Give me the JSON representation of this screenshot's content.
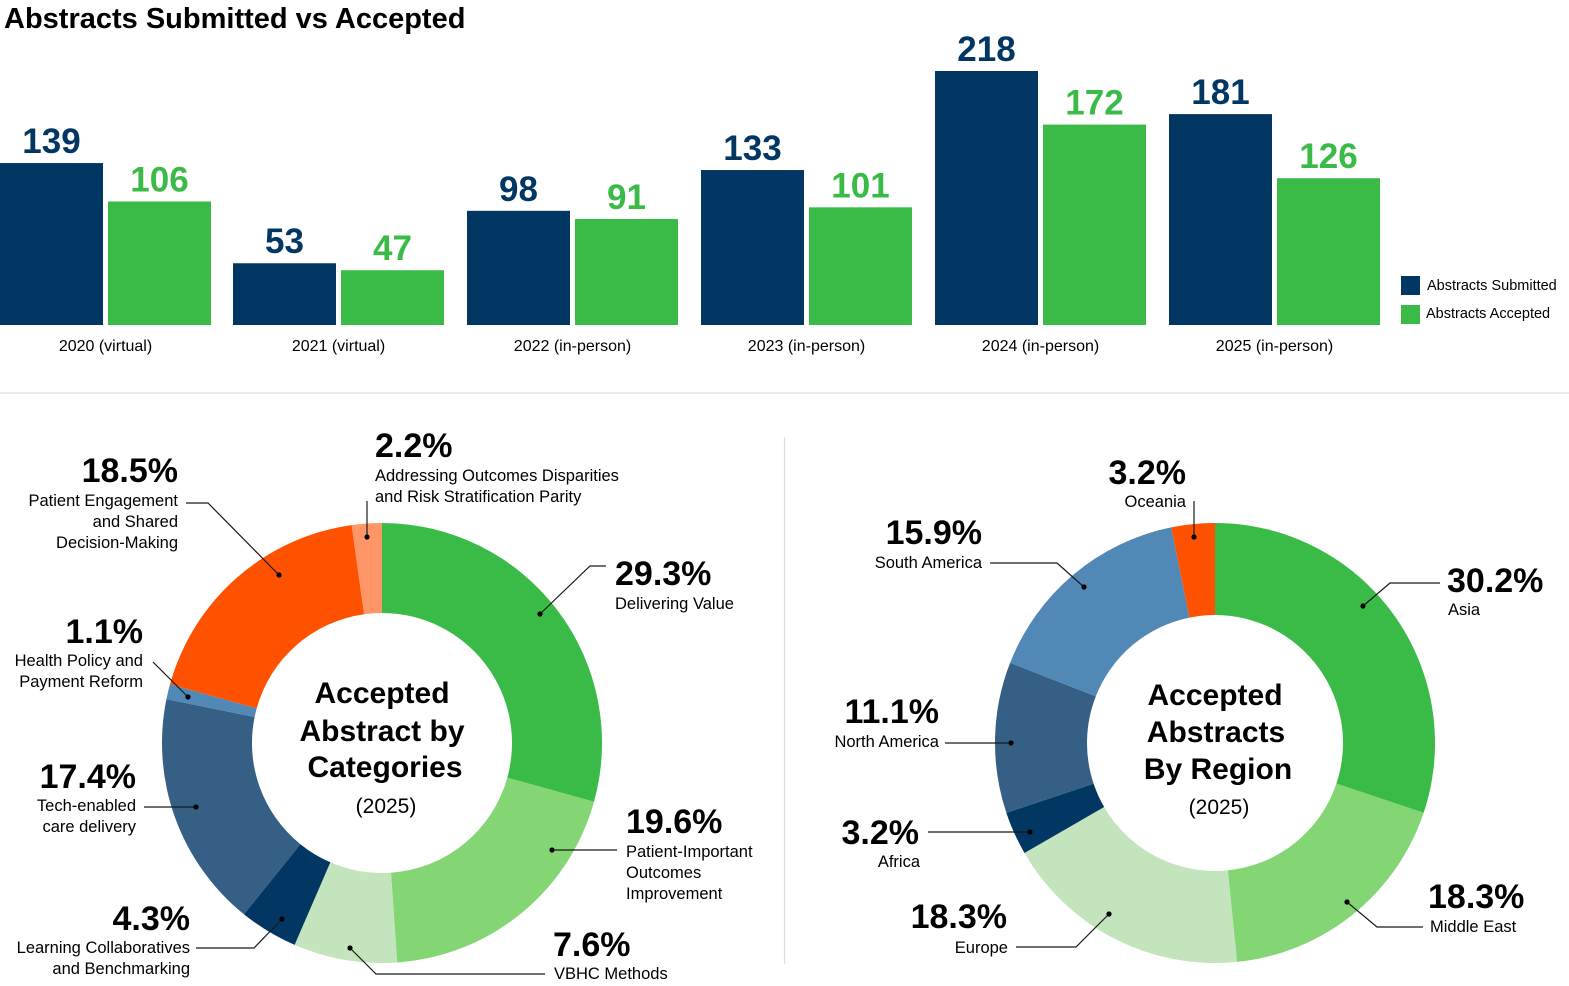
{
  "chart_data": [
    {
      "type": "bar",
      "title": "Abstracts Submitted vs Accepted",
      "xlabel": "",
      "ylabel": "",
      "ylim": [
        0,
        218
      ],
      "grid": false,
      "legend_position": "right",
      "categories": [
        "2020 (virtual)",
        "2021 (virtual)",
        "2022 (in-person)",
        "2023 (in-person)",
        "2024 (in-person)",
        "2025 (in-person)"
      ],
      "series": [
        {
          "name": "Abstracts Submitted",
          "color": "#023764",
          "values": [
            139,
            53,
            98,
            133,
            218,
            181
          ]
        },
        {
          "name": "Abstracts Accepted",
          "color": "#3abb47",
          "values": [
            106,
            47,
            91,
            101,
            172,
            126
          ]
        }
      ]
    },
    {
      "type": "pie",
      "title": "Accepted Abstract by Categories",
      "subtitle": "(2025)",
      "slices": [
        {
          "label": "Delivering Value",
          "value": 29.3,
          "display": "29.3%",
          "color": "#3abb47"
        },
        {
          "label": "Patient-Important Outcomes Improvement",
          "value": 19.6,
          "display": "19.6%",
          "color": "#84d574"
        },
        {
          "label": "VBHC Methods",
          "value": 7.6,
          "display": "7.6%",
          "color": "#c3e4bc"
        },
        {
          "label": "Learning Collaboratives and Benchmarking",
          "value": 4.3,
          "display": "4.3%",
          "color": "#023764"
        },
        {
          "label": "Tech-enabled care delivery",
          "value": 17.4,
          "display": "17.4%",
          "color": "#355f85"
        },
        {
          "label": "Health Policy and Payment Reform",
          "value": 1.1,
          "display": "1.1%",
          "color": "#5188b6"
        },
        {
          "label": "Patient Engagement and Shared Decision-Making",
          "value": 18.5,
          "display": "18.5%",
          "color": "#fe5201"
        },
        {
          "label": "Addressing Outcomes Disparities and Risk Stratification Parity",
          "value": 2.2,
          "display": "2.2%",
          "color": "#fe9668"
        }
      ]
    },
    {
      "type": "pie",
      "title": "Accepted Abstracts By Region",
      "subtitle": "(2025)",
      "slices": [
        {
          "label": "Asia",
          "value": 30.2,
          "display": "30.2%",
          "color": "#3abb47"
        },
        {
          "label": "Middle East",
          "value": 18.3,
          "display": "18.3%",
          "color": "#84d574"
        },
        {
          "label": "Europe",
          "value": 18.3,
          "display": "18.3%",
          "color": "#c3e4bc"
        },
        {
          "label": "Africa",
          "value": 3.2,
          "display": "3.2%",
          "color": "#023764"
        },
        {
          "label": "North America",
          "value": 11.1,
          "display": "11.1%",
          "color": "#355f85"
        },
        {
          "label": "South America",
          "value": 15.9,
          "display": "15.9%",
          "color": "#5188b6"
        },
        {
          "label": "Oceania",
          "value": 3.2,
          "display": "3.2%",
          "color": "#fe5201"
        }
      ]
    }
  ],
  "labels": {
    "categories": [
      {
        "pct": "29.3%",
        "lines": [
          "Delivering Value"
        ]
      },
      {
        "pct": "19.6%",
        "lines": [
          "Patient-Important",
          "Outcomes",
          "Improvement"
        ]
      },
      {
        "pct": "7.6%",
        "lines": [
          "VBHC Methods"
        ]
      },
      {
        "pct": "4.3%",
        "lines": [
          "Learning Collaboratives",
          "and Benchmarking"
        ]
      },
      {
        "pct": "17.4%",
        "lines": [
          "Tech-enabled",
          "care delivery"
        ]
      },
      {
        "pct": "1.1%",
        "lines": [
          "Health Policy and",
          "Payment Reform"
        ]
      },
      {
        "pct": "18.5%",
        "lines": [
          "Patient Engagement",
          "and Shared",
          "Decision-Making"
        ]
      },
      {
        "pct": "2.2%",
        "lines": [
          "Addressing Outcomes Disparities",
          "and Risk Stratification Parity"
        ]
      }
    ],
    "regions": [
      {
        "pct": "30.2%",
        "lines": [
          "Asia"
        ]
      },
      {
        "pct": "18.3%",
        "lines": [
          "Middle East"
        ]
      },
      {
        "pct": "18.3%",
        "lines": [
          "Europe"
        ]
      },
      {
        "pct": "3.2%",
        "lines": [
          "Africa"
        ]
      },
      {
        "pct": "11.1%",
        "lines": [
          "North America"
        ]
      },
      {
        "pct": "15.9%",
        "lines": [
          "South America"
        ]
      },
      {
        "pct": "3.2%",
        "lines": [
          "Oceania"
        ]
      }
    ],
    "donut1_center": [
      "Accepted",
      "Abstract by",
      "Categories"
    ],
    "donut2_center": [
      "Accepted",
      "Abstracts",
      "By Region"
    ]
  }
}
